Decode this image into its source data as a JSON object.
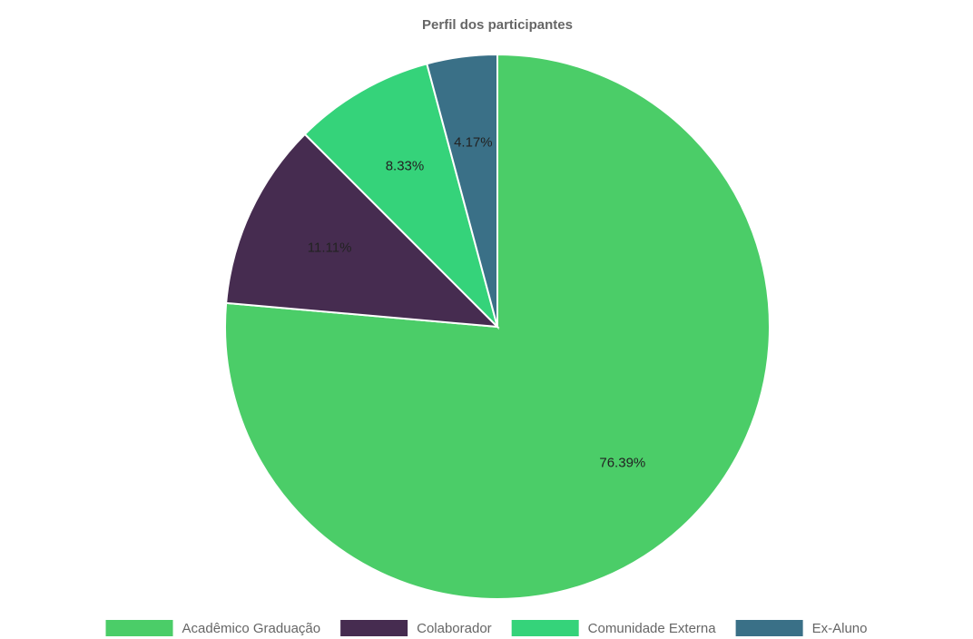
{
  "chart_data": {
    "type": "pie",
    "title": "Perfil dos participantes",
    "categories": [
      "Acadêmico Graduação",
      "Colaborador",
      "Comunidade Externa",
      "Ex-Aluno"
    ],
    "values": [
      76.39,
      11.11,
      8.33,
      4.17
    ],
    "value_labels": [
      "76.39%",
      "11.11%",
      "8.33%",
      "4.17%"
    ],
    "colors": [
      "#4bcd68",
      "#462c50",
      "#35d37a",
      "#3a7087"
    ],
    "legend": "bottom"
  }
}
